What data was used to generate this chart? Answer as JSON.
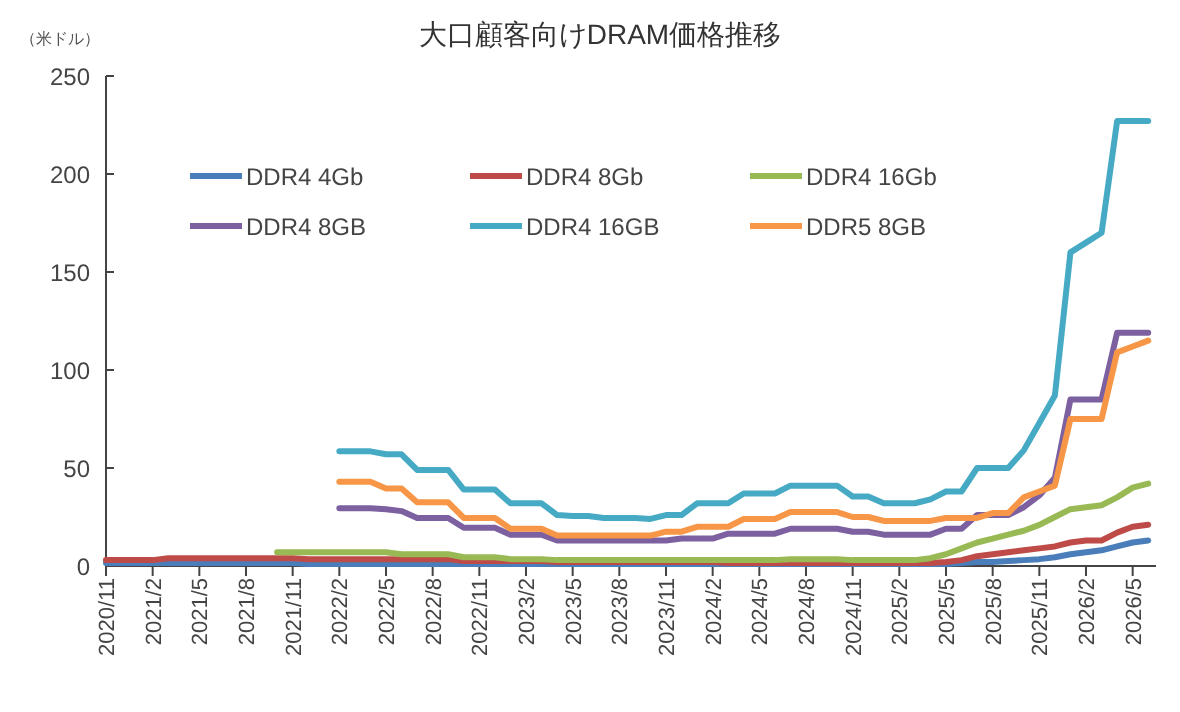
{
  "chart_data": {
    "type": "line",
    "title": "大口顧客向けDRAM価格推移",
    "ylabel": "（米ドル）",
    "categories": [
      "2020/11",
      null,
      null,
      "2021/2",
      null,
      null,
      "2021/5",
      null,
      null,
      "2021/8",
      null,
      null,
      "2021/11",
      null,
      null,
      "2022/2",
      null,
      null,
      "2022/5",
      null,
      null,
      "2022/8",
      null,
      null,
      "2022/11",
      null,
      null,
      "2023/2",
      null,
      null,
      "2023/5",
      null,
      null,
      "2023/8",
      null,
      null,
      "2023/11",
      null,
      null,
      "2024/2",
      null,
      null,
      "2024/5",
      null,
      null,
      "2024/8",
      null,
      null,
      "2024/11",
      null,
      null,
      "2025/2",
      null,
      null,
      "2025/5",
      null,
      null,
      "2025/8",
      null,
      null,
      "2025/11",
      null,
      null,
      "2026/2",
      null,
      null,
      "2026/5",
      null
    ],
    "ylim": [
      0,
      250
    ],
    "yticks": [
      0,
      50,
      100,
      150,
      200,
      250
    ],
    "grid": false,
    "legend": "top left",
    "marker": "none",
    "line_style": "solid",
    "series": [
      {
        "name": "DDR4 4Gb",
        "color": "#4a7ebb",
        "values": [
          1.5,
          1.5,
          1.5,
          1.5,
          1.5,
          1.5,
          1.5,
          1.5,
          1.5,
          1.5,
          1.5,
          1.5,
          1.5,
          1,
          1,
          1,
          1,
          1,
          1,
          1,
          1,
          1,
          1,
          1,
          1,
          1,
          1,
          1,
          1,
          1,
          1,
          1,
          1,
          1,
          1,
          1,
          1,
          1,
          1,
          1,
          1,
          1,
          1,
          1,
          1,
          1,
          1,
          1,
          1,
          1,
          1,
          1,
          1,
          1,
          1,
          1.5,
          2,
          2,
          2.5,
          3,
          3.5,
          4.5,
          6,
          7,
          8,
          10,
          12,
          13
        ]
      },
      {
        "name": "DDR4 8Gb",
        "color": "#be4b48",
        "values": [
          3,
          3,
          3,
          3,
          4,
          4,
          4,
          4,
          4,
          4,
          4,
          4,
          4,
          3.5,
          3.5,
          3.5,
          3.5,
          3.5,
          3.5,
          3.5,
          3.5,
          3.5,
          3.5,
          2.5,
          2.5,
          2.5,
          2.5,
          2.5,
          2.5,
          2,
          2,
          2,
          2,
          2,
          2,
          2,
          2,
          2,
          2,
          2,
          1.5,
          1.5,
          1.5,
          1.5,
          1.5,
          1.5,
          1.5,
          1.5,
          1.5,
          1.5,
          1.5,
          1.5,
          1.5,
          1.5,
          2,
          3,
          5,
          6,
          7,
          8,
          9,
          10,
          12,
          13,
          13,
          17,
          20,
          21
        ]
      },
      {
        "name": "DDR4 16Gb",
        "color": "#98b954",
        "values": [
          null,
          null,
          null,
          null,
          null,
          null,
          null,
          null,
          null,
          null,
          null,
          7,
          7,
          7,
          7,
          7,
          7,
          7,
          7,
          6,
          6,
          6,
          6,
          4.5,
          4.5,
          4.5,
          3.5,
          3.5,
          3.5,
          3,
          3,
          3,
          3,
          3,
          3,
          3,
          3,
          3,
          3,
          3,
          3,
          3,
          3,
          3,
          3.5,
          3.5,
          3.5,
          3.5,
          3,
          3,
          3,
          3,
          3,
          4,
          6,
          9,
          12,
          14,
          16,
          18,
          21,
          25,
          29,
          30,
          31,
          35,
          40,
          42
        ]
      },
      {
        "name": "DDR4 8GB",
        "color": "#7d60a0",
        "values": [
          null,
          null,
          null,
          null,
          null,
          null,
          null,
          null,
          null,
          null,
          null,
          null,
          null,
          null,
          null,
          29.5,
          29.5,
          29.5,
          29,
          28,
          24.5,
          24.5,
          24.5,
          19.5,
          19.5,
          19.5,
          16,
          16,
          16,
          13,
          13,
          13,
          13,
          13,
          13,
          13,
          13,
          14,
          14,
          14,
          16.5,
          16.5,
          16.5,
          16.5,
          19,
          19,
          19,
          19,
          17.5,
          17.5,
          16,
          16,
          16,
          16,
          19,
          19,
          26,
          26,
          26,
          30,
          36,
          45,
          85,
          85,
          85,
          119,
          119,
          119
        ]
      },
      {
        "name": "DDR4 16GB",
        "color": "#46aac5",
        "values": [
          null,
          null,
          null,
          null,
          null,
          null,
          null,
          null,
          null,
          null,
          null,
          null,
          null,
          null,
          null,
          58.5,
          58.5,
          58.5,
          57,
          57,
          49,
          49,
          49,
          39,
          39,
          39,
          32,
          32,
          32,
          26,
          25.5,
          25.5,
          24.5,
          24.5,
          24.5,
          24,
          26,
          26,
          32,
          32,
          32,
          37,
          37,
          37,
          41,
          41,
          41,
          41,
          35.5,
          35.5,
          32,
          32,
          32,
          34,
          38,
          38,
          50,
          50,
          50,
          59,
          73,
          87,
          160,
          165,
          170,
          227,
          227,
          227
        ]
      },
      {
        "name": "DDR5 8GB",
        "color": "#f79646",
        "values": [
          null,
          null,
          null,
          null,
          null,
          null,
          null,
          null,
          null,
          null,
          null,
          null,
          null,
          null,
          null,
          43,
          43,
          43,
          39.5,
          39.5,
          32.5,
          32.5,
          32.5,
          24.5,
          24.5,
          24.5,
          19,
          19,
          19,
          15.5,
          15.5,
          15.5,
          15.5,
          15.5,
          15.5,
          15.5,
          17.5,
          17.5,
          20,
          20,
          20,
          24,
          24,
          24,
          27.5,
          27.5,
          27.5,
          27.5,
          25,
          25,
          23,
          23,
          23,
          23,
          24.5,
          24.5,
          24.5,
          27,
          27,
          35,
          38,
          41,
          75,
          75,
          75,
          109,
          112,
          115
        ]
      }
    ]
  }
}
